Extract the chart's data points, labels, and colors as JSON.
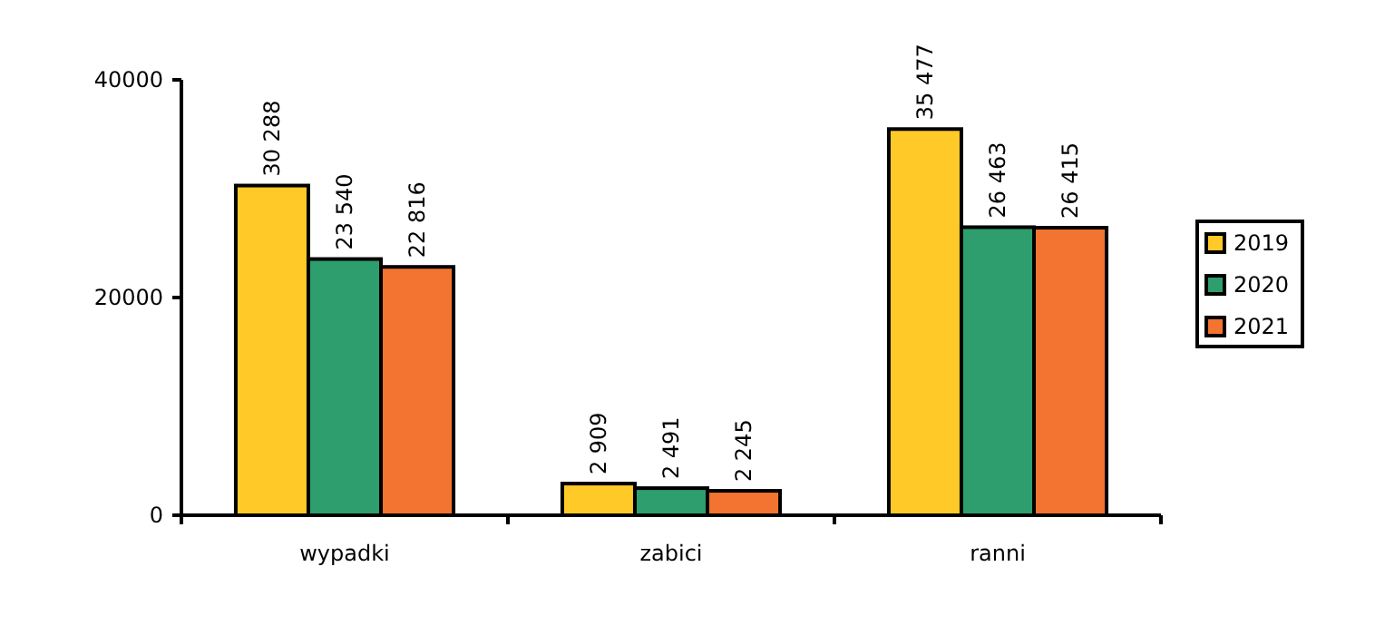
{
  "chart_data": {
    "type": "bar",
    "categories": [
      "wypadki",
      "zabici",
      "ranni"
    ],
    "series": [
      {
        "name": "2019",
        "color": "#ffca28",
        "values": [
          30288,
          2909,
          35477
        ],
        "value_labels": [
          "30 288",
          "2 909",
          "35 477"
        ]
      },
      {
        "name": "2020",
        "color": "#2e9e6e",
        "values": [
          23540,
          2491,
          26463
        ],
        "value_labels": [
          "23 540",
          "2 491",
          "26 463"
        ]
      },
      {
        "name": "2021",
        "color": "#f27430",
        "values": [
          22816,
          2245,
          26415
        ],
        "value_labels": [
          "22 816",
          "2 245",
          "26 415"
        ]
      }
    ],
    "ylim": [
      0,
      40000
    ],
    "yticks": [
      0,
      20000,
      40000
    ],
    "grid": false,
    "legend": "right"
  }
}
